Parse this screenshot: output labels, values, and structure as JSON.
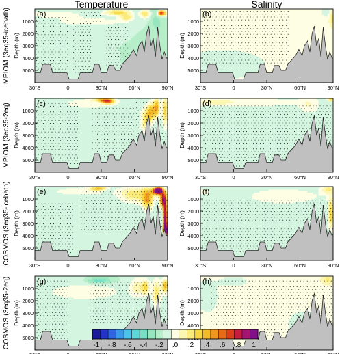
{
  "chart_data": {
    "type": "heatmap",
    "column_titles": [
      "Temperature",
      "Salinity"
    ],
    "row_labels": [
      "MPIOM (3eq35-icebath)",
      "MPIOM (3eq35-2eq)",
      "COSMOS (3eq35-icebath)",
      "COSMOS (3eq35-2eq)"
    ],
    "panel_letters": [
      [
        "(a)",
        "(b)"
      ],
      [
        "(c)",
        "(d)"
      ],
      [
        "(e)",
        "(f)"
      ],
      [
        "(g)",
        "(h)"
      ]
    ],
    "ylabel": "Depth (m)",
    "x_ticks": [
      "30°S",
      "0",
      "30°N",
      "60°N",
      "90°N"
    ],
    "x_tick_values": [
      -30,
      0,
      30,
      60,
      90
    ],
    "y_ticks": [
      "1000",
      "2000",
      "3000",
      "4000",
      "5000"
    ],
    "y_tick_values": [
      1000,
      2000,
      3000,
      4000,
      5000
    ],
    "xlim": [
      -30,
      90
    ],
    "ylim": [
      0,
      6000
    ],
    "colorbar": {
      "labels": [
        "-1",
        "-.8",
        "-.6",
        "-.4",
        "-.2",
        ".0",
        ".2",
        ".4",
        ".6",
        ".8",
        "1"
      ],
      "label_values": [
        -1,
        -0.8,
        -0.6,
        -0.4,
        -0.2,
        0,
        0.2,
        0.4,
        0.6,
        0.8,
        1
      ],
      "levels": [
        -1,
        -0.9,
        -0.8,
        -0.7,
        -0.6,
        -0.5,
        -0.4,
        -0.3,
        -0.2,
        -0.1,
        0,
        0.1,
        0.2,
        0.3,
        0.4,
        0.5,
        0.6,
        0.7,
        0.8,
        0.9,
        1
      ],
      "colors": [
        "#1a1a9a",
        "#2432c8",
        "#2f63e0",
        "#3a9ae8",
        "#4cc4ea",
        "#5ed7d8",
        "#78dfc4",
        "#98e6c0",
        "#b6eec9",
        "#d4f5df",
        "#fefee4",
        "#fdf7b4",
        "#fbeb7a",
        "#f8d747",
        "#f4bb29",
        "#ef961e",
        "#e76a17",
        "#dc3e18",
        "#c61c40",
        "#a41470",
        "#82108a"
      ]
    },
    "bathymetry_depth": [
      [
        -30,
        5200
      ],
      [
        -25,
        5200
      ],
      [
        -23,
        4500
      ],
      [
        -16,
        4500
      ],
      [
        -14,
        5200
      ],
      [
        -1,
        5200
      ],
      [
        1,
        5700
      ],
      [
        9,
        5700
      ],
      [
        11,
        5200
      ],
      [
        22,
        5200
      ],
      [
        24,
        4500
      ],
      [
        28,
        4500
      ],
      [
        30,
        5200
      ],
      [
        35,
        5200
      ],
      [
        37,
        4600
      ],
      [
        41,
        4600
      ],
      [
        43,
        5000
      ],
      [
        47,
        5000
      ],
      [
        49,
        4500
      ],
      [
        53,
        4100
      ],
      [
        56,
        3800
      ],
      [
        59,
        3300
      ],
      [
        62,
        3800
      ],
      [
        64,
        3000
      ],
      [
        67,
        2600
      ],
      [
        69,
        3500
      ],
      [
        71,
        2000
      ],
      [
        73,
        1400
      ],
      [
        75,
        3000
      ],
      [
        77,
        2400
      ],
      [
        79,
        3900
      ],
      [
        81,
        1500
      ],
      [
        83,
        3000
      ],
      [
        85,
        4100
      ],
      [
        87,
        3500
      ],
      [
        89,
        4000
      ],
      [
        90,
        4000
      ]
    ],
    "fields": [
      {
        "panel": "(a)",
        "background": -0.15,
        "blobs": [
          [
            -14,
            450,
            30,
            320,
            0.02
          ],
          [
            20,
            1050,
            35,
            350,
            0.02
          ],
          [
            45,
            300,
            12,
            250,
            0.28
          ],
          [
            53,
            700,
            6,
            250,
            0.2
          ],
          [
            70,
            400,
            5,
            350,
            0.25
          ],
          [
            80,
            800,
            6,
            1400,
            -0.3
          ],
          [
            84,
            350,
            3,
            250,
            0.78
          ],
          [
            86,
            1500,
            6,
            700,
            -0.15
          ],
          [
            88,
            350,
            3,
            250,
            0.15
          ]
        ],
        "stipple": [
          [
            -30,
            0,
            700,
            5400
          ],
          [
            5,
            22,
            1200,
            5300
          ],
          [
            35,
            55,
            1300,
            5000
          ],
          [
            12,
            30,
            300,
            1000
          ]
        ]
      },
      {
        "panel": "(b)",
        "background": 0.01,
        "blobs": [
          [
            -10,
            4500,
            40,
            1200,
            -0.14
          ],
          [
            85,
            300,
            6,
            450,
            -0.12
          ],
          [
            89,
            700,
            3,
            700,
            0.22
          ]
        ],
        "stipple": [
          [
            -28,
            50,
            200,
            4800
          ]
        ]
      },
      {
        "panel": "(c)",
        "background": -0.15,
        "blobs": [
          [
            20,
            400,
            28,
            450,
            0.02
          ],
          [
            32,
            150,
            8,
            200,
            0.45
          ],
          [
            37,
            250,
            5,
            200,
            0.3
          ],
          [
            27,
            300,
            4,
            200,
            -0.3
          ],
          [
            70,
            1800,
            5,
            1000,
            0.2
          ],
          [
            75,
            1100,
            4,
            700,
            0.35
          ],
          [
            80,
            700,
            3,
            800,
            0.4
          ],
          [
            88,
            1000,
            3,
            1300,
            0.3
          ],
          [
            84,
            1900,
            2,
            900,
            -0.15
          ]
        ],
        "stipple": [
          [
            -30,
            10,
            400,
            5400
          ],
          [
            22,
            60,
            800,
            4800
          ],
          [
            62,
            90,
            300,
            3500
          ]
        ]
      },
      {
        "panel": "(d)",
        "background": -0.15,
        "blobs": [
          [
            20,
            300,
            45,
            420,
            0.02
          ],
          [
            -20,
            300,
            20,
            350,
            0.02
          ],
          [
            68,
            600,
            10,
            800,
            0.02
          ],
          [
            88,
            100,
            3,
            150,
            0.3
          ]
        ],
        "stipple": [
          [
            -30,
            90,
            600,
            5500
          ]
        ]
      },
      {
        "panel": "(e)",
        "background": -0.15,
        "blobs": [
          [
            12,
            400,
            30,
            380,
            0.02
          ],
          [
            28,
            150,
            8,
            180,
            0.35
          ],
          [
            35,
            280,
            6,
            200,
            -0.25
          ],
          [
            60,
            650,
            14,
            700,
            0.2
          ],
          [
            72,
            1000,
            5,
            900,
            0.4
          ],
          [
            80,
            350,
            4,
            300,
            0.75
          ],
          [
            82,
            300,
            3,
            250,
            0.95
          ],
          [
            86,
            1000,
            3,
            700,
            0.82
          ],
          [
            88,
            2500,
            2,
            1300,
            0.9
          ],
          [
            88,
            3600,
            2,
            500,
            0.98
          ]
        ],
        "stipple": [
          [
            -30,
            5,
            1400,
            5400
          ],
          [
            12,
            90,
            200,
            3700
          ]
        ]
      },
      {
        "panel": "(f)",
        "background": -0.15,
        "blobs": [
          [
            45,
            800,
            40,
            750,
            0.02
          ],
          [
            -30,
            450,
            10,
            300,
            0.02
          ],
          [
            85,
            200,
            6,
            400,
            0.15
          ],
          [
            88,
            2200,
            3,
            1300,
            0.3
          ]
        ],
        "stipple": [
          [
            -28,
            90,
            1100,
            5500
          ]
        ]
      },
      {
        "panel": "(g)",
        "background": -0.15,
        "blobs": [
          [
            15,
            1300,
            40,
            750,
            0.02
          ],
          [
            30,
            350,
            10,
            230,
            -0.42
          ],
          [
            22,
            420,
            6,
            200,
            -0.25
          ],
          [
            62,
            900,
            6,
            800,
            0.08
          ],
          [
            70,
            900,
            4,
            600,
            0.25
          ],
          [
            80,
            1400,
            4,
            1200,
            0.2
          ],
          [
            88,
            800,
            3,
            600,
            0.4
          ]
        ],
        "stipple": [
          [
            -28,
            0,
            400,
            5400
          ],
          [
            20,
            90,
            500,
            3800
          ]
        ]
      },
      {
        "panel": "(h)",
        "background": 0.01,
        "blobs": [
          [
            -24,
            1600,
            10,
            1300,
            -0.15
          ],
          [
            0,
            450,
            12,
            350,
            -0.15
          ],
          [
            65,
            4000,
            20,
            1500,
            -0.1
          ],
          [
            85,
            300,
            5,
            400,
            0.2
          ]
        ],
        "stipple": [
          [
            -20,
            90,
            400,
            5000
          ]
        ]
      }
    ]
  }
}
